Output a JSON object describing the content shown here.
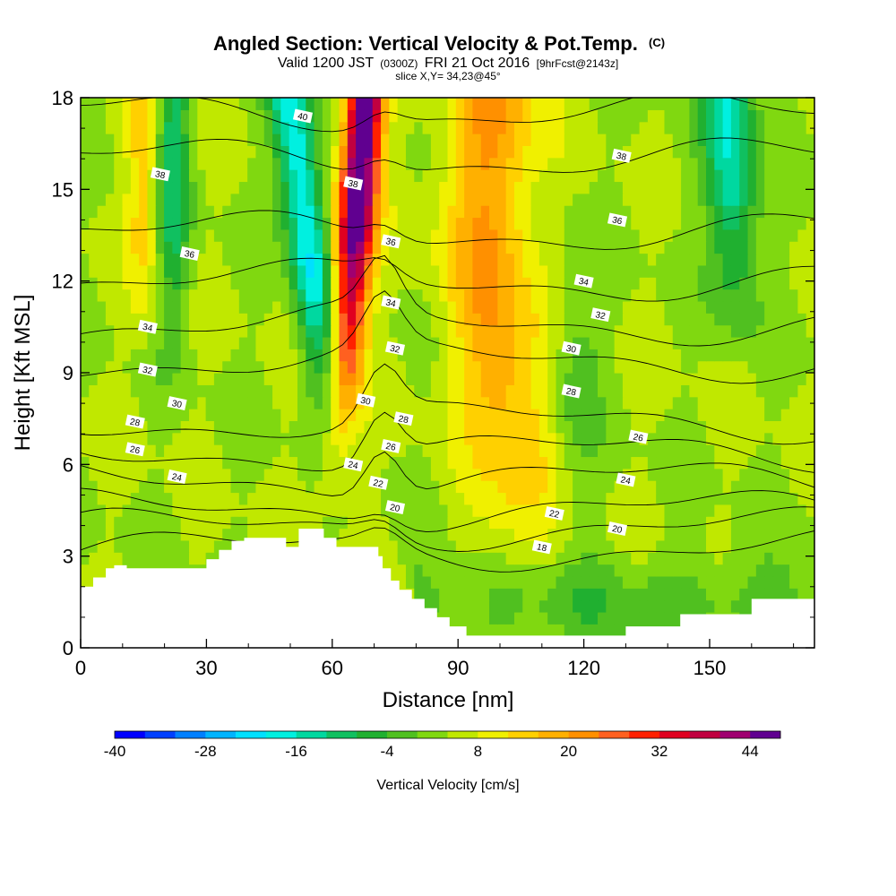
{
  "header": {
    "title": "Angled Section: Vertical Velocity & Pot.Temp.",
    "title_tag": "(C)",
    "valid_prefix": "Valid 1200 JST",
    "valid_utc": "(0300Z)",
    "valid_date": "FRI 21 Oct 2016",
    "forecast": "[9hrFcst@2143z]",
    "slice": "slice X,Y= 34,23@45°"
  },
  "chart_data": {
    "type": "heatmap",
    "xlabel": "Distance [nm]",
    "ylabel": "Height [Kft MSL]",
    "xlim": [
      0,
      175
    ],
    "ylim": [
      0,
      18
    ],
    "x_ticks": [
      0,
      30,
      60,
      90,
      120,
      150
    ],
    "y_ticks": [
      0,
      3,
      6,
      9,
      12,
      15,
      18
    ],
    "colorbar": {
      "label": "Vertical Velocity [cm/s]",
      "min": -40,
      "step": 4,
      "tick_labels": [
        -40,
        -28,
        -16,
        -4,
        8,
        20,
        32,
        44
      ],
      "colors": [
        "#0000ff",
        "#0040ff",
        "#0080ff",
        "#00b4ff",
        "#00e0ff",
        "#00f0e0",
        "#00d8a0",
        "#10c060",
        "#20b030",
        "#50c020",
        "#80d810",
        "#c0e800",
        "#f0f000",
        "#ffd000",
        "#ffb000",
        "#ff9000",
        "#ff6020",
        "#ff2000",
        "#e00020",
        "#c00040",
        "#a00070",
        "#600090"
      ]
    },
    "velocity_features": [
      {
        "name": "updraft",
        "x_center": 67,
        "max": 48
      },
      {
        "name": "downdraft",
        "x_center": 50,
        "min": -24
      },
      {
        "name": "updraft",
        "x_center": 100,
        "max": 16
      },
      {
        "name": "downdraft",
        "x_center": 155,
        "min": -20
      }
    ],
    "theta_levels": [
      {
        "value": 18,
        "height_kft": 3.2
      },
      {
        "value": 20,
        "height_kft": 3.9
      },
      {
        "value": 22,
        "height_kft": 4.5
      },
      {
        "value": 24,
        "height_kft": 5.5
      },
      {
        "value": 26,
        "height_kft": 6.4
      },
      {
        "value": 28,
        "height_kft": 7.4
      },
      {
        "value": 30,
        "height_kft": 9.4
      },
      {
        "value": 32,
        "height_kft": 10.6
      },
      {
        "value": 34,
        "height_kft": 12.0
      },
      {
        "value": 36,
        "height_kft": 13.6
      },
      {
        "value": 38,
        "height_kft": 16.0
      },
      {
        "value": 40,
        "height_kft": 17.5
      }
    ],
    "theta_labels": [
      {
        "text": "40",
        "x": 53,
        "y": 17.4
      },
      {
        "text": "38",
        "x": 19,
        "y": 15.5
      },
      {
        "text": "38",
        "x": 65,
        "y": 15.2
      },
      {
        "text": "38",
        "x": 129,
        "y": 16.1
      },
      {
        "text": "36",
        "x": 26,
        "y": 12.9
      },
      {
        "text": "36",
        "x": 74,
        "y": 13.3
      },
      {
        "text": "36",
        "x": 128,
        "y": 14.0
      },
      {
        "text": "34",
        "x": 16,
        "y": 10.5
      },
      {
        "text": "34",
        "x": 74,
        "y": 11.3
      },
      {
        "text": "34",
        "x": 120,
        "y": 12.0
      },
      {
        "text": "32",
        "x": 16,
        "y": 9.1
      },
      {
        "text": "32",
        "x": 75,
        "y": 9.8
      },
      {
        "text": "32",
        "x": 124,
        "y": 10.9
      },
      {
        "text": "30",
        "x": 23,
        "y": 8.0
      },
      {
        "text": "30",
        "x": 68,
        "y": 8.1
      },
      {
        "text": "30",
        "x": 117,
        "y": 9.8
      },
      {
        "text": "28",
        "x": 13,
        "y": 7.4
      },
      {
        "text": "28",
        "x": 77,
        "y": 7.5
      },
      {
        "text": "28",
        "x": 117,
        "y": 8.4
      },
      {
        "text": "26",
        "x": 13,
        "y": 6.5
      },
      {
        "text": "26",
        "x": 74,
        "y": 6.6
      },
      {
        "text": "26",
        "x": 133,
        "y": 6.9
      },
      {
        "text": "24",
        "x": 23,
        "y": 5.6
      },
      {
        "text": "24",
        "x": 65,
        "y": 6.0
      },
      {
        "text": "24",
        "x": 130,
        "y": 5.5
      },
      {
        "text": "22",
        "x": 71,
        "y": 5.4
      },
      {
        "text": "22",
        "x": 113,
        "y": 4.4
      },
      {
        "text": "20",
        "x": 75,
        "y": 4.6
      },
      {
        "text": "20",
        "x": 128,
        "y": 3.9
      },
      {
        "text": "18",
        "x": 110,
        "y": 3.3
      }
    ],
    "terrain": {
      "x": [
        0,
        3,
        3,
        6,
        6,
        8,
        8,
        11,
        11,
        30,
        30,
        33,
        33,
        36,
        36,
        39,
        39,
        43,
        43,
        49,
        49,
        52,
        52,
        58,
        58,
        61,
        61,
        71,
        71,
        72,
        72,
        74,
        74,
        76,
        76,
        79,
        79,
        82,
        82,
        85,
        85,
        88,
        88,
        92,
        92,
        97,
        97,
        130,
        130,
        143,
        143,
        160,
        160,
        175
      ],
      "height": [
        2.0,
        2.0,
        2.3,
        2.3,
        2.6,
        2.6,
        2.7,
        2.7,
        2.6,
        2.6,
        2.9,
        2.9,
        3.2,
        3.2,
        3.5,
        3.5,
        3.6,
        3.6,
        3.6,
        3.6,
        3.3,
        3.3,
        3.9,
        3.9,
        3.6,
        3.6,
        3.3,
        3.3,
        3.0,
        3.0,
        2.6,
        2.6,
        2.2,
        2.2,
        1.9,
        1.9,
        1.6,
        1.6,
        1.3,
        1.3,
        1.0,
        1.0,
        0.7,
        0.7,
        0.4,
        0.4,
        0.4,
        0.4,
        0.7,
        0.7,
        1.1,
        1.1,
        1.6,
        1.6
      ]
    }
  }
}
